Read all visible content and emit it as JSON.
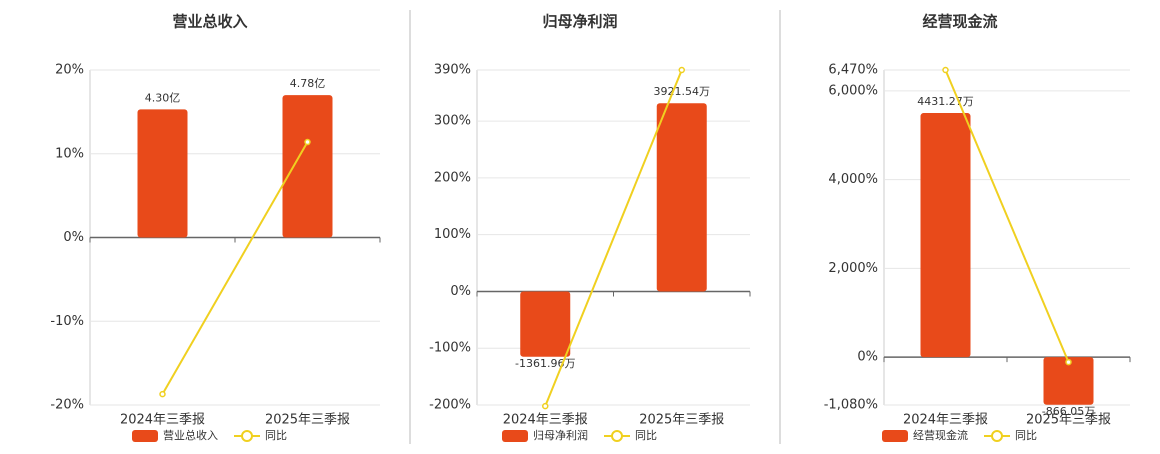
{
  "chart_data": [
    {
      "type": "bar",
      "title": "营业总收入",
      "categories": [
        "2024年三季报",
        "2025年三季报"
      ],
      "series": [
        {
          "name": "营业总收入",
          "color": "#e84a1a",
          "values": [
            4.3,
            4.78
          ],
          "value_labels": [
            "4.30亿",
            "4.78亿"
          ]
        },
        {
          "name": "同比",
          "type": "line",
          "color": "#f0d020",
          "values": [
            -18.7,
            11.4
          ]
        }
      ],
      "ylim": [
        -20,
        20
      ],
      "yticks": [
        {
          "value": -20,
          "label": "-20%"
        },
        {
          "value": -10,
          "label": "-10%"
        },
        {
          "value": 0,
          "label": "0%"
        },
        {
          "value": 10,
          "label": "10%"
        },
        {
          "value": 20,
          "label": "20%"
        }
      ]
    },
    {
      "type": "bar",
      "title": "归母净利润",
      "categories": [
        "2024年三季报",
        "2025年三季报"
      ],
      "series": [
        {
          "name": "归母净利润",
          "color": "#e84a1a",
          "values": [
            -1361.96,
            3921.54
          ],
          "value_labels": [
            "-1361.96万",
            "3921.54万"
          ]
        },
        {
          "name": "同比",
          "type": "line",
          "color": "#f0d020",
          "values": [
            -202,
            390
          ]
        }
      ],
      "ylim": [
        -200,
        390
      ],
      "yticks": [
        {
          "value": -200,
          "label": "-200%"
        },
        {
          "value": -100,
          "label": "-100%"
        },
        {
          "value": 0,
          "label": "0%"
        },
        {
          "value": 100,
          "label": "100%"
        },
        {
          "value": 200,
          "label": "200%"
        },
        {
          "value": 300,
          "label": "300%"
        },
        {
          "value": 390,
          "label": "390%"
        }
      ]
    },
    {
      "type": "bar",
      "title": "经营现金流",
      "categories": [
        "2024年三季报",
        "2025年三季报"
      ],
      "series": [
        {
          "name": "经营现金流",
          "color": "#e84a1a",
          "values": [
            4431.27,
            -866.05
          ],
          "value_labels": [
            "4431.27万",
            "-866.05万"
          ]
        },
        {
          "name": "同比",
          "type": "line",
          "color": "#f0d020",
          "values": [
            6470,
            -113
          ]
        }
      ],
      "ylim": [
        -1080,
        6470
      ],
      "yticks": [
        {
          "value": -1080,
          "label": "-1,080%"
        },
        {
          "value": 0,
          "label": "0%"
        },
        {
          "value": 2000,
          "label": "2,000%"
        },
        {
          "value": 4000,
          "label": "4,000%"
        },
        {
          "value": 6000,
          "label": "6,000%"
        },
        {
          "value": 6470,
          "label": "6,470%"
        }
      ]
    }
  ]
}
